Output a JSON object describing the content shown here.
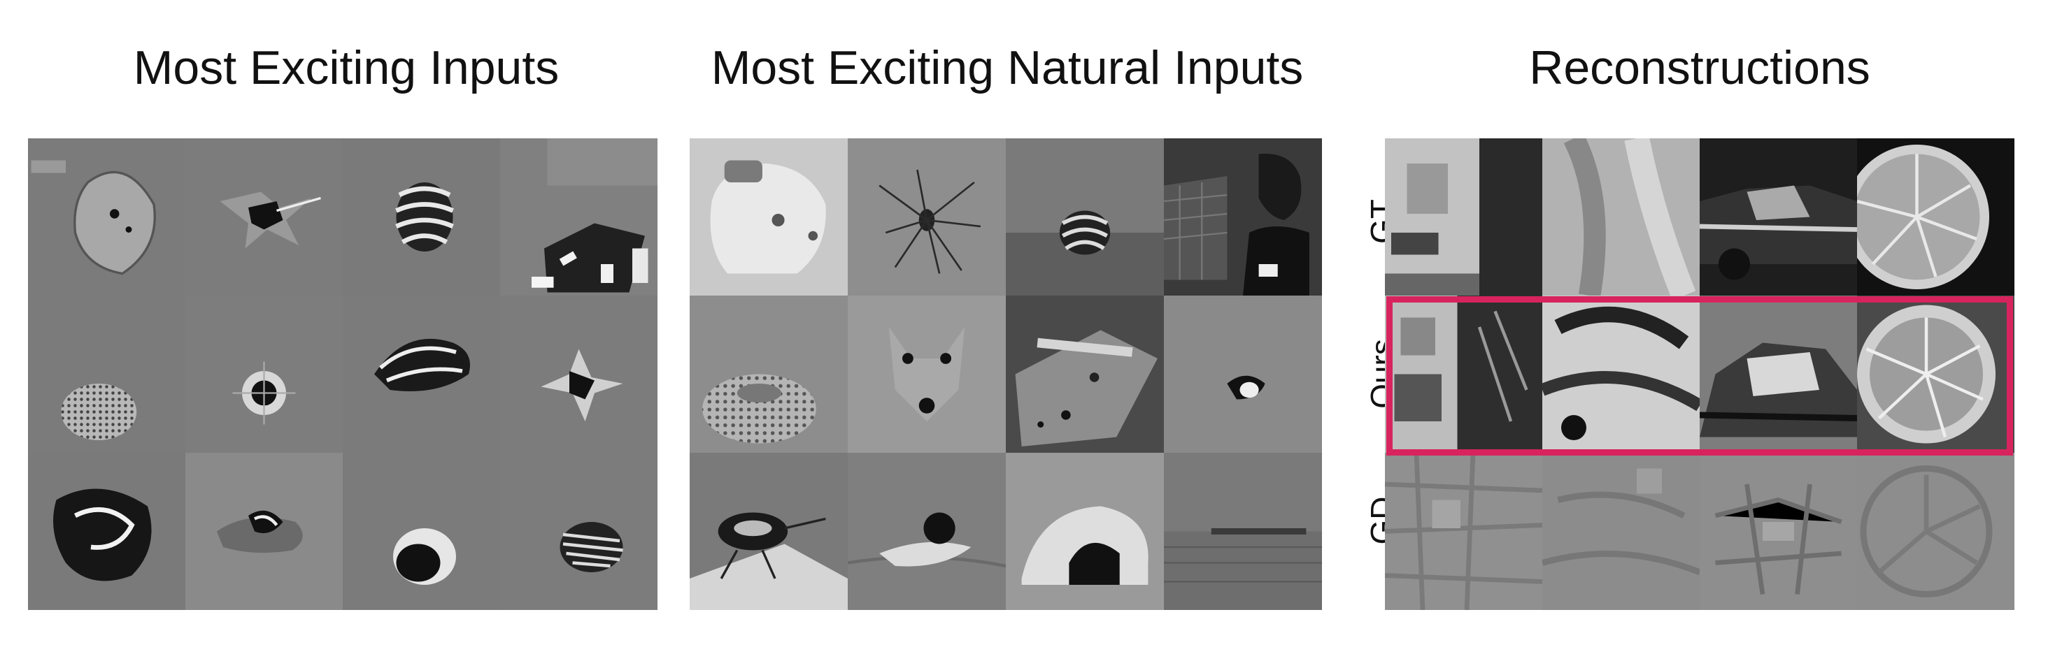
{
  "titles": {
    "mei": "Most Exciting Inputs",
    "meni": "Most Exciting Natural Inputs",
    "recon": "Reconstructions"
  },
  "row_labels": {
    "gt": "GT",
    "ours": "Ours",
    "gd": "GD"
  },
  "panels": {
    "mei": [
      "mei-lens-shape",
      "mei-splat",
      "mei-striped-shell",
      "mei-scatter-rects",
      "mei-dotted-ball",
      "mei-ring-spot",
      "mei-lobed-shape",
      "mei-star-shape",
      "mei-dark-blob",
      "mei-torn-shape",
      "mei-eye-shape",
      "mei-zebra-blob"
    ],
    "meni": [
      "piggy-bank",
      "spider",
      "striped-shell",
      "dog-on-fence",
      "coral-mushroom",
      "fox-face",
      "leaf-eyes",
      "small-bird",
      "beetle-on-leaf",
      "swimming-bird",
      "half-shell",
      "distant-pier"
    ],
    "recon": [
      "gt-interior",
      "gt-close-up",
      "gt-vintage-car",
      "gt-citrus-slice",
      "ours-interior",
      "ours-close-up",
      "ours-vintage-car",
      "ours-citrus-slice",
      "gd-interior",
      "gd-close-up",
      "gd-vintage-car",
      "gd-citrus-slice"
    ]
  },
  "colors": {
    "highlight": "#d8245e"
  }
}
